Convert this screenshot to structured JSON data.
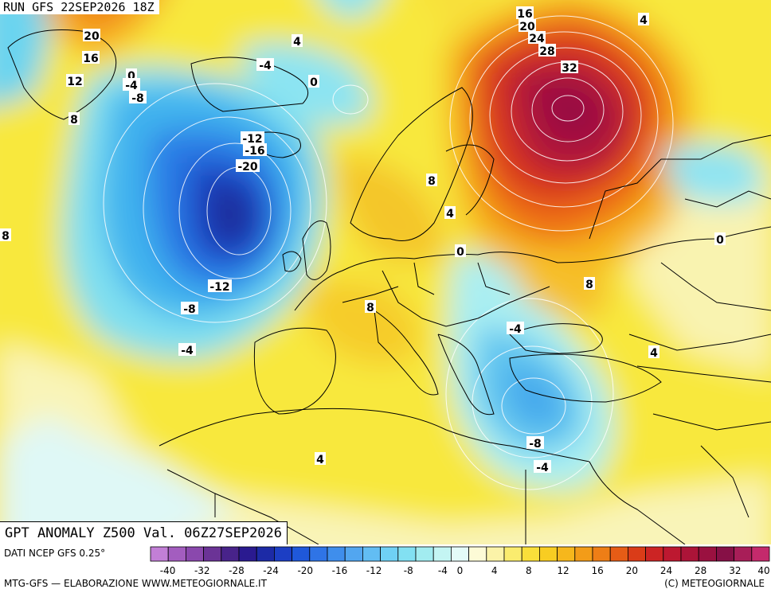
{
  "run_label": "RUN GFS 22SEP2026 18Z",
  "title": "GPT ANOMALY Z500 Val. 06Z27SEP2026",
  "source": "DATI NCEP GFS 0.25°",
  "credit_left": "MTG-GFS — ELABORAZIONE WWW.METEOGIORNALE.IT",
  "credit_right": "(C) METEOGIORNALE",
  "contour_labels": [
    {
      "text": "20"
    },
    {
      "text": "16"
    },
    {
      "text": "12"
    },
    {
      "text": "0"
    },
    {
      "text": "-4"
    },
    {
      "text": "-8"
    },
    {
      "text": "8"
    },
    {
      "text": "4"
    },
    {
      "text": "-4"
    },
    {
      "text": "0"
    },
    {
      "text": "-12"
    },
    {
      "text": "-16"
    },
    {
      "text": "-20"
    },
    {
      "text": "8"
    },
    {
      "text": "-12"
    },
    {
      "text": "-8"
    },
    {
      "text": "-4"
    },
    {
      "text": "16"
    },
    {
      "text": "20"
    },
    {
      "text": "24"
    },
    {
      "text": "28"
    },
    {
      "text": "32"
    },
    {
      "text": "4"
    },
    {
      "text": "8"
    },
    {
      "text": "4"
    },
    {
      "text": "0"
    },
    {
      "text": "8"
    },
    {
      "text": "0"
    },
    {
      "text": "8"
    },
    {
      "text": "-4"
    },
    {
      "text": "4"
    },
    {
      "text": "-8"
    },
    {
      "text": "-4"
    },
    {
      "text": "4"
    }
  ],
  "legend": {
    "ticks": [
      "-40",
      "-32",
      "-28",
      "-24",
      "-20",
      "-16",
      "-12",
      "-8",
      "-4",
      "0",
      "4",
      "8",
      "12",
      "16",
      "20",
      "24",
      "28",
      "32",
      "40"
    ],
    "colors": [
      "#c27fd6",
      "#a35dbf",
      "#8a48ad",
      "#6b3396",
      "#48238a",
      "#2a1a90",
      "#1c2aa6",
      "#1c3ec4",
      "#1f58da",
      "#2f74e6",
      "#3f8eec",
      "#52a6f0",
      "#62bdf3",
      "#6fd0f4",
      "#82e0f2",
      "#a2ecf0",
      "#c4f5f3",
      "#e4fbf8",
      "#fdfbd6",
      "#fbf3a8",
      "#faec6e",
      "#f9df3a",
      "#f8cd22",
      "#f6b71c",
      "#f39c18",
      "#ee7e16",
      "#e65c16",
      "#da3c18",
      "#cc2424",
      "#bd1830",
      "#ac1438",
      "#9a1140",
      "#861046",
      "#a81e58",
      "#c42a6c"
    ]
  }
}
